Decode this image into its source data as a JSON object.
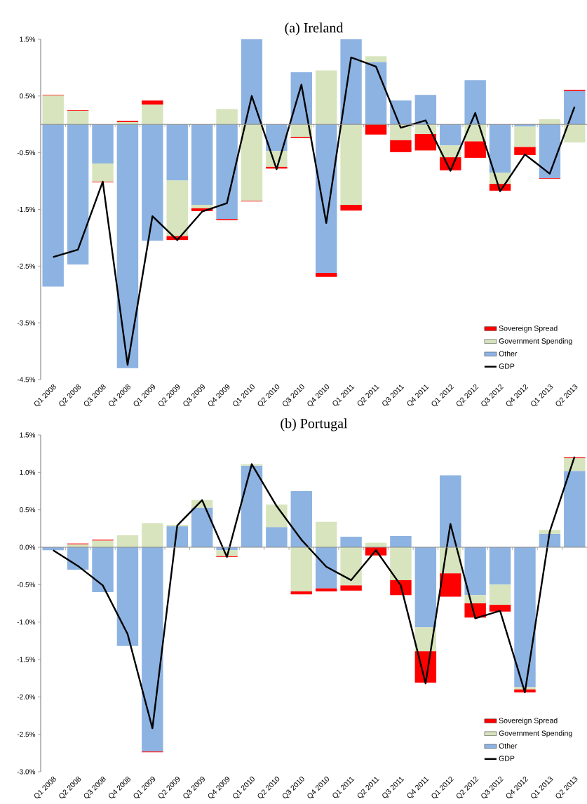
{
  "chart_data": [
    {
      "type": "bar",
      "title": "(a) Ireland",
      "stacked": true,
      "legend": "bottom right",
      "categories": [
        "Q1 2008",
        "Q2 2008",
        "Q3 2008",
        "Q4 2008",
        "Q1 2009",
        "Q2 2009",
        "Q3 2009",
        "Q4 2009",
        "Q1 2010",
        "Q2 2010",
        "Q3 2010",
        "Q4 2010",
        "Q1 2011",
        "Q2 2011",
        "Q3 2011",
        "Q4 2011",
        "Q1 2012",
        "Q2 2012",
        "Q3 2012",
        "Q4 2012",
        "Q1 2013",
        "Q2 2013"
      ],
      "ylim": [
        -4.5,
        1.5
      ],
      "yticks": [
        {
          "value": -4.5,
          "label": "-4.5%"
        },
        {
          "value": -3.5,
          "label": "-3.5%"
        },
        {
          "value": -2.5,
          "label": "-2.5%"
        },
        {
          "value": -1.5,
          "label": "-1.5%"
        },
        {
          "value": -0.5,
          "label": "-0.5%"
        },
        {
          "value": 0.5,
          "label": "0.5%"
        },
        {
          "value": 1.5,
          "label": "1.5%"
        }
      ],
      "series": [
        {
          "name": "Other",
          "color": "#8db3e2",
          "values": [
            -2.86,
            -2.47,
            -0.69,
            -4.3,
            -2.05,
            -0.99,
            -1.42,
            -1.67,
            1.5,
            -0.47,
            0.92,
            -2.62,
            1.5,
            1.1,
            0.42,
            0.52,
            -0.37,
            0.78,
            -0.85,
            -0.04,
            -0.95,
            0.59
          ]
        },
        {
          "name": "Government Spending",
          "color": "#d7e4bd",
          "values": [
            0.51,
            0.24,
            -0.32,
            0.04,
            0.35,
            -0.98,
            -0.06,
            0.27,
            -1.35,
            -0.28,
            -0.22,
            0.95,
            -1.42,
            0.1,
            -0.28,
            -0.17,
            -0.21,
            -0.3,
            -0.2,
            -0.36,
            0.09,
            -0.32
          ]
        },
        {
          "name": "Sovereign Spread",
          "color": "#ff0000",
          "values": [
            0.01,
            0.01,
            -0.01,
            0.02,
            0.07,
            -0.07,
            -0.05,
            -0.02,
            -0.01,
            -0.03,
            -0.02,
            -0.07,
            -0.1,
            -0.18,
            -0.21,
            -0.29,
            -0.23,
            -0.29,
            -0.12,
            -0.14,
            -0.01,
            0.02
          ]
        },
        {
          "name": "GDP",
          "type": "line",
          "color": "#000000",
          "values": [
            -2.34,
            -2.21,
            -1.01,
            -4.24,
            -1.62,
            -2.04,
            -1.54,
            -1.39,
            0.5,
            -0.79,
            0.7,
            -1.74,
            1.18,
            1.02,
            -0.06,
            0.07,
            -0.82,
            0.2,
            -1.18,
            -0.53,
            -0.87,
            0.31
          ]
        }
      ]
    },
    {
      "type": "bar",
      "title": "(b) Portugal",
      "stacked": true,
      "legend": "bottom right",
      "categories": [
        "Q1 2008",
        "Q2 2008",
        "Q3 2008",
        "Q4 2008",
        "Q1 2009",
        "Q2 2009",
        "Q3 2009",
        "Q4 2009",
        "Q1 2010",
        "Q2 2010",
        "Q3 2010",
        "Q4 2010",
        "Q1 2011",
        "Q2 2011",
        "Q3 2011",
        "Q4 2011",
        "Q1 2012",
        "Q2 2012",
        "Q3 2012",
        "Q4 2012",
        "Q1 2013",
        "Q2 2013"
      ],
      "ylim": [
        -3.0,
        1.5
      ],
      "yticks": [
        {
          "value": -3.0,
          "label": "-3.0%"
        },
        {
          "value": -2.5,
          "label": "-2.5%"
        },
        {
          "value": -2.0,
          "label": "-2.0%"
        },
        {
          "value": -1.5,
          "label": "-1.5%"
        },
        {
          "value": -1.0,
          "label": "-1.0%"
        },
        {
          "value": -0.5,
          "label": "-0.5%"
        },
        {
          "value": 0.0,
          "label": "0.0%"
        },
        {
          "value": 0.5,
          "label": "0.5%"
        },
        {
          "value": 1.0,
          "label": "1.0%"
        },
        {
          "value": 1.5,
          "label": "1.5%"
        }
      ],
      "series": [
        {
          "name": "Other",
          "color": "#8db3e2",
          "values": [
            -0.04,
            -0.3,
            -0.6,
            -1.32,
            -2.73,
            0.28,
            0.53,
            -0.04,
            1.09,
            0.27,
            0.75,
            -0.55,
            0.14,
            null,
            0.15,
            -1.07,
            0.96,
            -0.64,
            -0.5,
            -1.87,
            0.18,
            1.02
          ]
        },
        {
          "name": "Government Spending",
          "color": "#d7e4bd",
          "values": [
            0.0,
            0.04,
            0.09,
            0.16,
            0.32,
            0.02,
            0.1,
            -0.08,
            0.02,
            0.3,
            -0.59,
            0.34,
            -0.51,
            0.06,
            -0.44,
            -0.32,
            -0.35,
            -0.11,
            -0.27,
            -0.03,
            0.05,
            0.17
          ]
        },
        {
          "name": "Sovereign Spread",
          "color": "#ff0000",
          "values": [
            0.0,
            0.01,
            0.01,
            0.0,
            -0.01,
            0.0,
            0.0,
            -0.01,
            0.0,
            0.0,
            -0.04,
            -0.04,
            -0.07,
            -0.11,
            -0.2,
            -0.42,
            -0.31,
            -0.19,
            -0.09,
            -0.04,
            0.0,
            0.01
          ]
        },
        {
          "name": "GDP",
          "type": "line",
          "color": "#000000",
          "values": [
            -0.04,
            -0.25,
            -0.51,
            -1.16,
            -2.42,
            0.29,
            0.63,
            -0.13,
            1.11,
            0.55,
            0.1,
            -0.26,
            -0.44,
            -0.04,
            -0.51,
            -1.82,
            0.31,
            -0.95,
            -0.85,
            -1.94,
            0.21,
            1.21
          ]
        }
      ]
    }
  ]
}
